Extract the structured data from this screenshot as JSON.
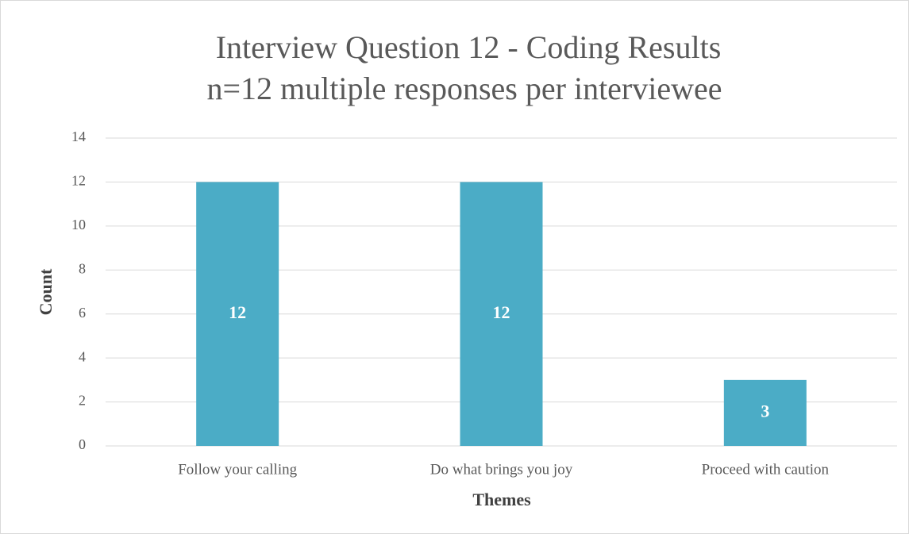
{
  "chart_data": {
    "type": "bar",
    "title": "Interview Question 12 - Coding Results",
    "subtitle": "n=12 multiple responses per interviewee",
    "xlabel": "Themes",
    "ylabel": "Count",
    "categories": [
      "Follow your calling",
      "Do what brings you joy",
      "Proceed with caution"
    ],
    "values": [
      12,
      12,
      3
    ],
    "color": "#4bacc6",
    "ylim": [
      0,
      14
    ],
    "yticks": [
      0,
      2,
      4,
      6,
      8,
      10,
      12,
      14
    ],
    "grid": true
  }
}
